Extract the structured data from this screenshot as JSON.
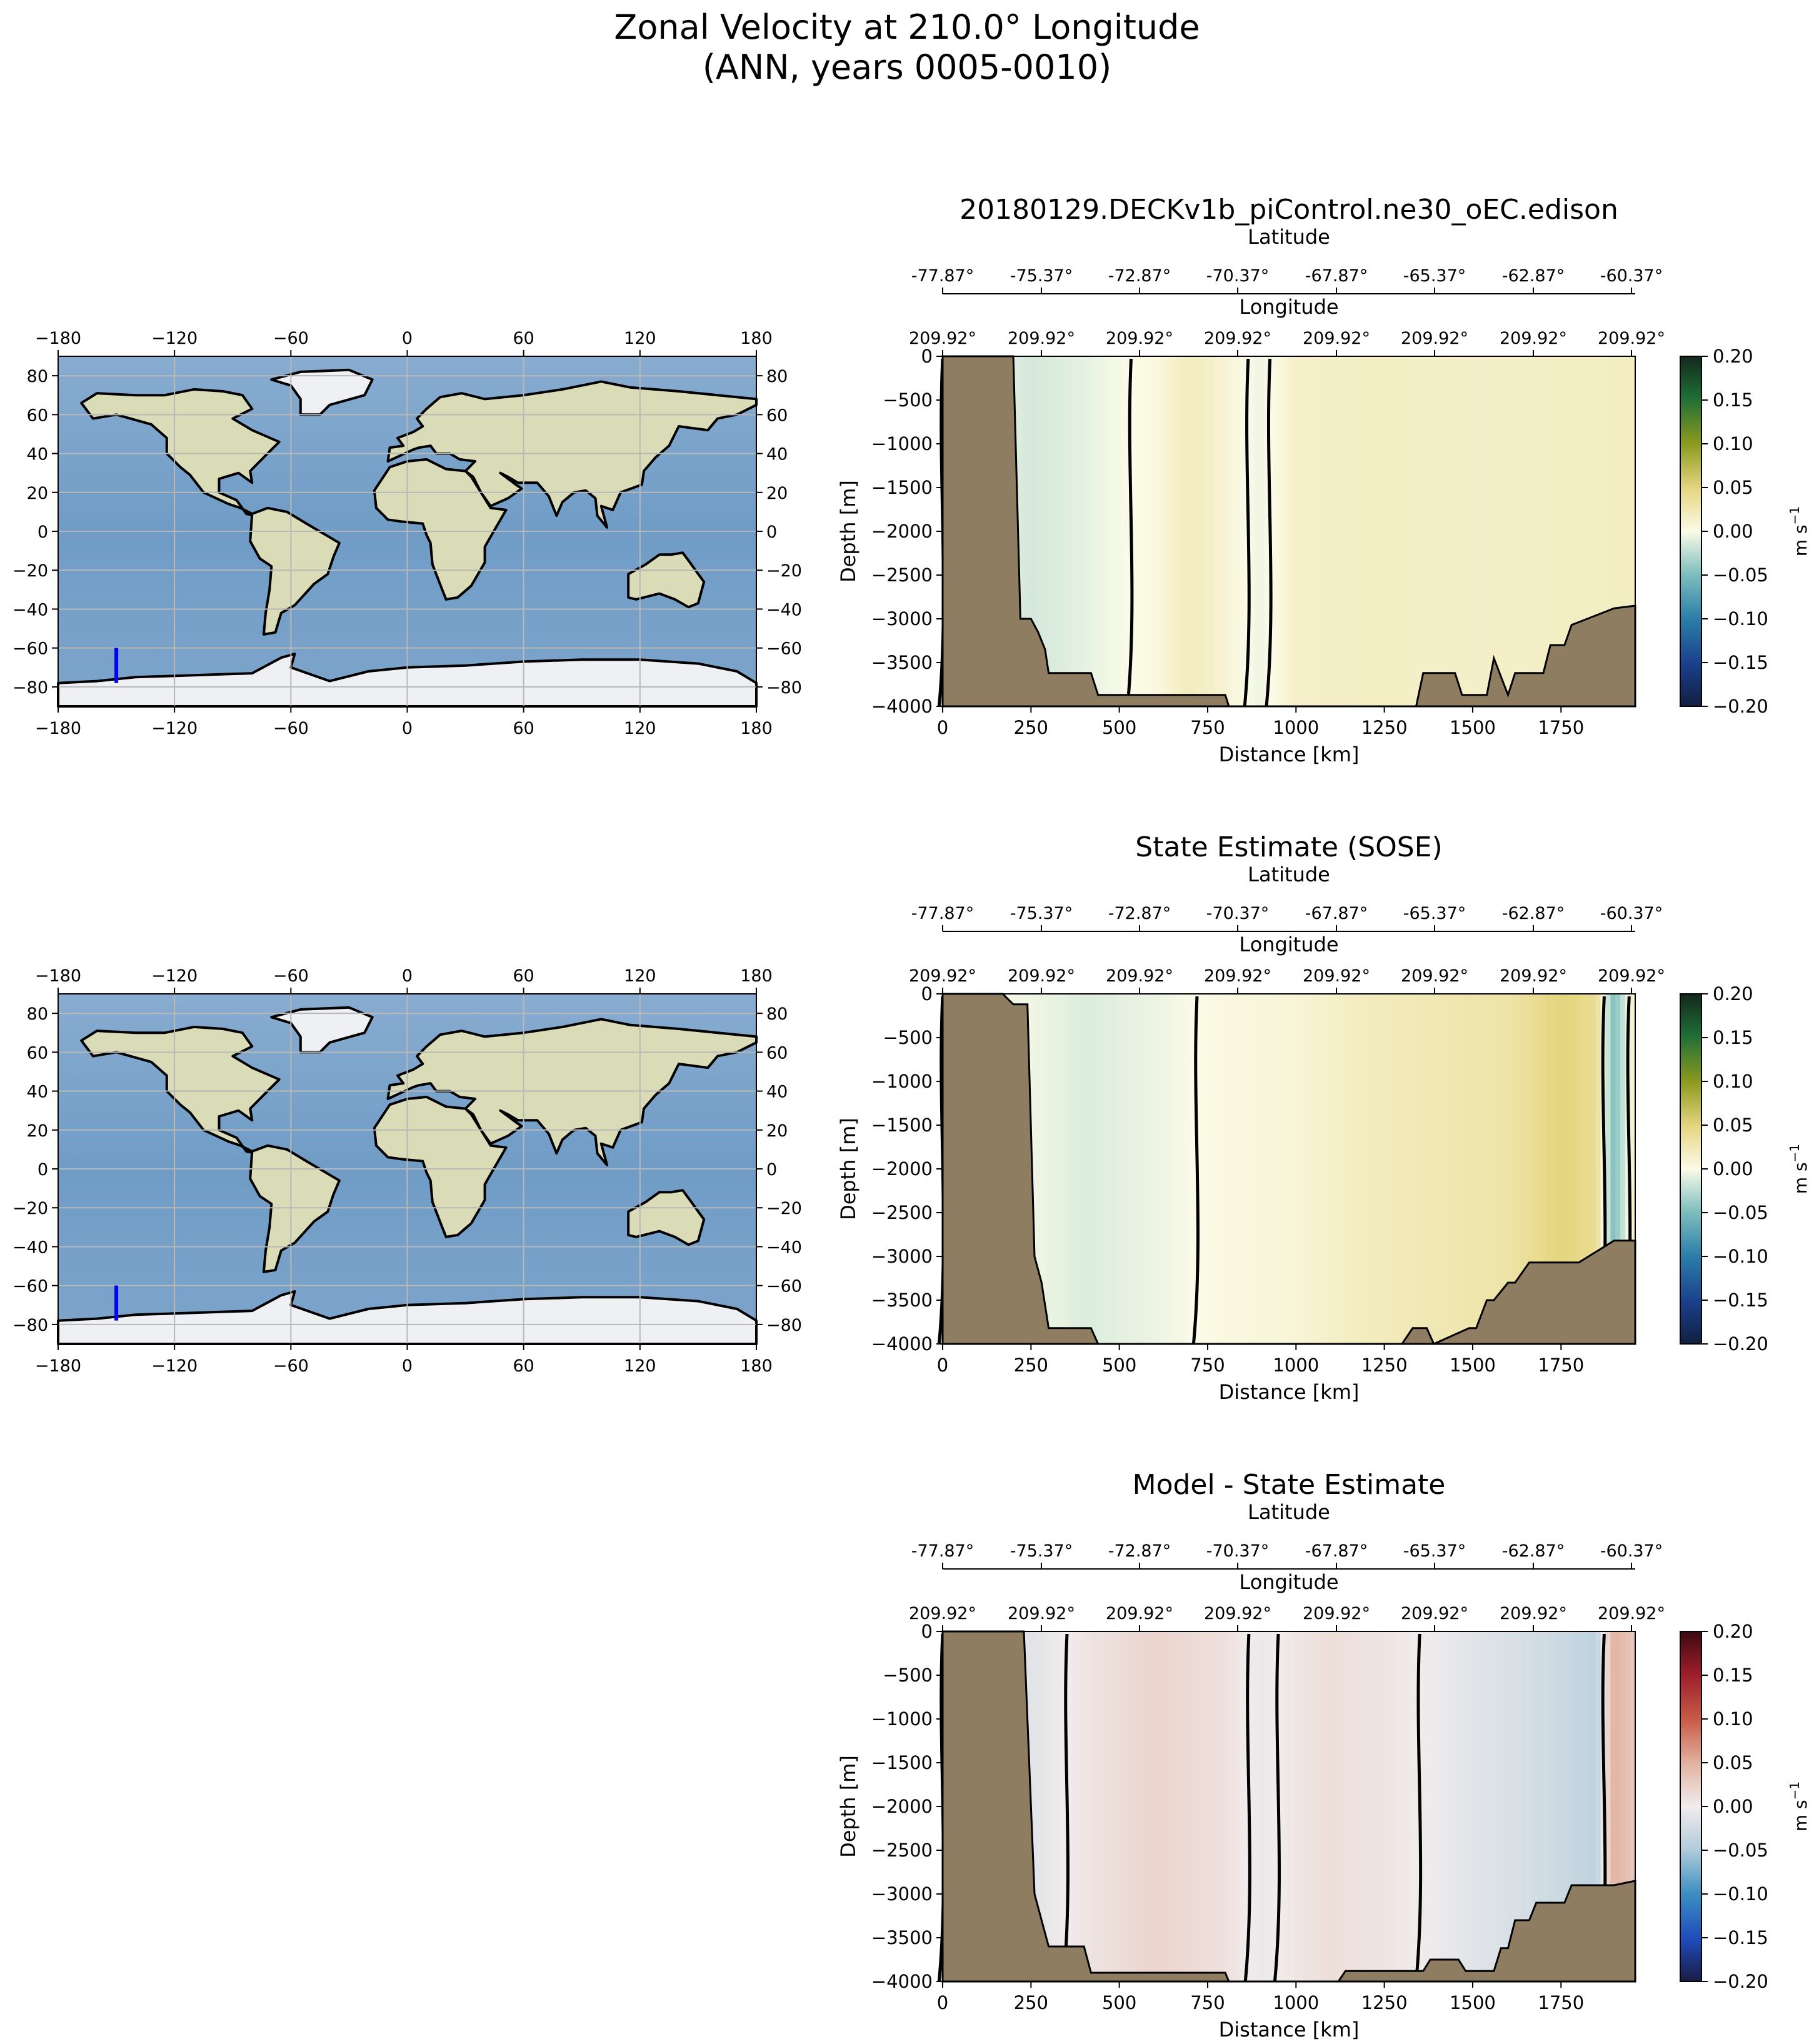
{
  "figure": {
    "title_line1": "Zonal Velocity at 210.0° Longitude",
    "title_line2": "(ANN, years 0005-0010)"
  },
  "colors": {
    "land": "#8f7d62",
    "ocean": "#7ba3c8",
    "continent": "#d9dcb7",
    "ice": "#eef0f3",
    "transect": "#0000ff",
    "grid": "#b8b8b8"
  },
  "maps": {
    "lon_ticks": [
      "−180",
      "−120",
      "−60",
      "0",
      "60",
      "120",
      "180"
    ],
    "lat_ticks": [
      "80",
      "60",
      "40",
      "20",
      "0",
      "−20",
      "−40",
      "−60",
      "−80"
    ],
    "transect": {
      "lon": -150,
      "lat_start": -60,
      "lat_end": -78
    }
  },
  "sections": {
    "lat_axis_label": "Latitude",
    "lon_axis_label": "Longitude",
    "lat_ticks": [
      "-77.87°",
      "-75.37°",
      "-72.87°",
      "-70.37°",
      "-67.87°",
      "-65.37°",
      "-62.87°",
      "-60.37°"
    ],
    "lon_ticks": [
      "209.92°",
      "209.92°",
      "209.92°",
      "209.92°",
      "209.92°",
      "209.92°",
      "209.92°",
      "209.92°"
    ],
    "x_ticks": [
      "0",
      "250",
      "500",
      "750",
      "1000",
      "1250",
      "1500",
      "1750"
    ],
    "y_ticks": [
      "0",
      "−500",
      "−1000",
      "−1500",
      "−2000",
      "−2500",
      "−3000",
      "−3500",
      "−4000"
    ],
    "xlabel": "Distance [km]",
    "ylabel": "Depth [m]",
    "colorbar_ticks": [
      "0.20",
      "0.15",
      "0.10",
      "0.05",
      "0.00",
      "−0.05",
      "−0.10",
      "−0.15",
      "−0.20"
    ],
    "colorbar_label": "m s",
    "colorbar_label_sup": "−1"
  },
  "chart_data": [
    {
      "type": "heatmap",
      "title": "20180129.DECKv1b_piControl.ne30_oEC.edison",
      "xlabel": "Distance [km]",
      "ylabel": "Depth [m]",
      "xlim": [
        0,
        1960
      ],
      "ylim": [
        -4000,
        0
      ],
      "clim": [
        -0.2,
        0.2
      ],
      "colormap": "delta",
      "velocity_profile_x": [
        0,
        260,
        400,
        600,
        700,
        780,
        900,
        1000,
        1200,
        1500,
        1960
      ],
      "velocity_profile_u": [
        0,
        -0.015,
        -0.008,
        0.004,
        0.02,
        0.012,
        -0.005,
        0.014,
        0.017,
        0.015,
        0.018
      ],
      "bathymetry_x": [
        0,
        200,
        220,
        250,
        270,
        290,
        300,
        420,
        440,
        800,
        810,
        1120,
        1140,
        1340,
        1360,
        1450,
        1470,
        1540,
        1560,
        1600,
        1620,
        1700,
        1720,
        1760,
        1780,
        1900,
        1960
      ],
      "bathymetry_depth": [
        0,
        0,
        -3000,
        -3000,
        -3150,
        -3350,
        -3620,
        -3620,
        -3870,
        -3870,
        -4000,
        -4000,
        -4000,
        -4000,
        -3620,
        -3620,
        -3870,
        -3870,
        -3450,
        -3870,
        -3620,
        -3620,
        -3300,
        -3300,
        -3070,
        -2880,
        -2850
      ]
    },
    {
      "type": "heatmap",
      "title": "State Estimate (SOSE)",
      "xlabel": "Distance [km]",
      "ylabel": "Depth [m]",
      "xlim": [
        0,
        1960
      ],
      "ylim": [
        -4000,
        0
      ],
      "clim": [
        -0.2,
        0.2
      ],
      "colormap": "delta",
      "velocity_profile_x": [
        0,
        250,
        400,
        600,
        800,
        1000,
        1200,
        1400,
        1600,
        1750,
        1850,
        1900,
        1960
      ],
      "velocity_profile_u": [
        0,
        -0.004,
        -0.012,
        -0.006,
        0.004,
        0.008,
        0.02,
        0.025,
        0.03,
        0.05,
        0.04,
        -0.05,
        0.02
      ],
      "bathymetry_x": [
        0,
        170,
        200,
        240,
        260,
        280,
        300,
        420,
        440,
        1300,
        1330,
        1370,
        1390,
        1490,
        1510,
        1540,
        1560,
        1600,
        1620,
        1660,
        1680,
        1780,
        1800,
        1900,
        1960
      ],
      "bathymetry_depth": [
        0,
        0,
        -120,
        -120,
        -3000,
        -3300,
        -3820,
        -3820,
        -4000,
        -4000,
        -3820,
        -3820,
        -4000,
        -3820,
        -3820,
        -3500,
        -3500,
        -3300,
        -3300,
        -3070,
        -3070,
        -3070,
        -3070,
        -2820,
        -2820
      ]
    },
    {
      "type": "heatmap",
      "title": "Model - State Estimate",
      "xlabel": "Distance [km]",
      "ylabel": "Depth [m]",
      "xlim": [
        0,
        1960
      ],
      "ylim": [
        -4000,
        0
      ],
      "clim": [
        -0.2,
        0.2
      ],
      "colormap": "balance",
      "velocity_profile_x": [
        0,
        250,
        420,
        600,
        800,
        900,
        1000,
        1100,
        1300,
        1500,
        1700,
        1850,
        1900,
        1960
      ],
      "velocity_profile_u": [
        0,
        -0.012,
        0.008,
        0.02,
        0.01,
        -0.005,
        0.005,
        0.012,
        0.004,
        -0.012,
        -0.025,
        -0.04,
        0.05,
        0.03
      ],
      "bathymetry_x": [
        0,
        230,
        260,
        280,
        300,
        400,
        420,
        800,
        810,
        1120,
        1140,
        1360,
        1380,
        1460,
        1480,
        1560,
        1580,
        1600,
        1620,
        1660,
        1680,
        1760,
        1780,
        1900,
        1960
      ],
      "bathymetry_depth": [
        0,
        0,
        -3000,
        -3300,
        -3600,
        -3600,
        -3900,
        -3900,
        -4000,
        -4000,
        -3880,
        -3880,
        -3750,
        -3750,
        -3880,
        -3880,
        -3620,
        -3620,
        -3300,
        -3300,
        -3100,
        -3100,
        -2900,
        -2900,
        -2850
      ]
    }
  ]
}
